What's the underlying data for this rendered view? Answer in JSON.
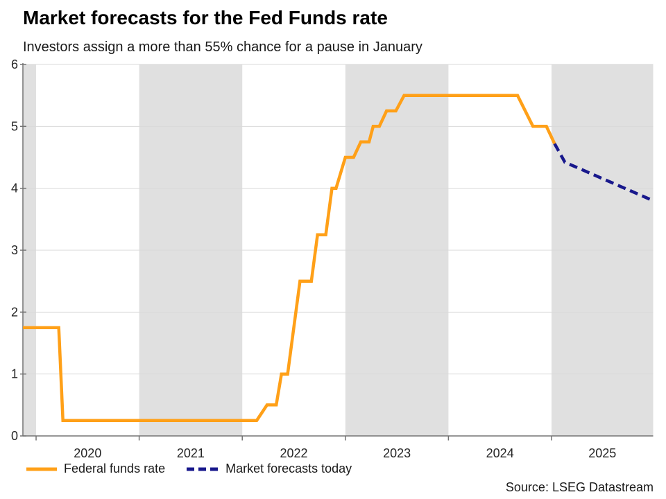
{
  "header": {
    "title": "Market forecasts for the Fed Funds rate",
    "subtitle": "Investors assign a more than 55% chance for a pause in January"
  },
  "legend": {
    "items": [
      {
        "label": "Federal funds rate",
        "color": "#FFA018",
        "style": "solid"
      },
      {
        "label": "Market forecasts today",
        "color": "#18188C",
        "style": "dashed"
      }
    ]
  },
  "source": "Source: LSEG Datastream",
  "chart_data": {
    "type": "line",
    "title": "Market forecasts for the Fed Funds rate",
    "subtitle": "Investors assign a more than 55% chance for a pause in January",
    "xlabel": "",
    "ylabel": "",
    "x_range": [
      2019.872,
      2025.986
    ],
    "y_range": [
      0,
      6
    ],
    "y_ticks": [
      0,
      1,
      2,
      3,
      4,
      5,
      6
    ],
    "x_tick_years": [
      2020,
      2021,
      2022,
      2023,
      2024,
      2025
    ],
    "x_tick_labels": [
      "2020",
      "2021",
      "2022",
      "2023",
      "2024",
      "2025"
    ],
    "grid": "horizontal",
    "legend_position": "bottom-left",
    "shaded_bands": [
      [
        2019.872,
        2020.0
      ],
      [
        2021.0,
        2022.0
      ],
      [
        2023.0,
        2024.0
      ],
      [
        2025.0,
        2025.986
      ]
    ],
    "colors": {
      "orange": "#FFA018",
      "navy": "#18188C",
      "band": "#E0E0E0",
      "grid": "#D9D9D9",
      "axis": "#737373",
      "tick_text": "#262626"
    },
    "series": [
      {
        "name": "Federal funds rate",
        "color": "#FFA018",
        "dash": null,
        "points": [
          [
            2019.872,
            1.75
          ],
          [
            2020.22,
            1.75
          ],
          [
            2020.26,
            0.25
          ],
          [
            2022.14,
            0.25
          ],
          [
            2022.24,
            0.5
          ],
          [
            2022.33,
            0.5
          ],
          [
            2022.38,
            1.0
          ],
          [
            2022.44,
            1.0
          ],
          [
            2022.56,
            2.5
          ],
          [
            2022.67,
            2.5
          ],
          [
            2022.73,
            3.25
          ],
          [
            2022.81,
            3.25
          ],
          [
            2022.87,
            4.0
          ],
          [
            2022.91,
            4.0
          ],
          [
            2023.0,
            4.5
          ],
          [
            2023.08,
            4.5
          ],
          [
            2023.15,
            4.75
          ],
          [
            2023.23,
            4.75
          ],
          [
            2023.27,
            5.0
          ],
          [
            2023.33,
            5.0
          ],
          [
            2023.4,
            5.25
          ],
          [
            2023.49,
            5.25
          ],
          [
            2023.57,
            5.5
          ],
          [
            2024.67,
            5.5
          ],
          [
            2024.82,
            5.0
          ],
          [
            2024.95,
            5.0
          ],
          [
            2025.03,
            4.72
          ]
        ]
      },
      {
        "name": "Market forecasts today",
        "color": "#18188C",
        "dash": [
          12,
          7
        ],
        "points": [
          [
            2025.03,
            4.72
          ],
          [
            2025.13,
            4.42
          ],
          [
            2025.985,
            3.8
          ]
        ]
      }
    ]
  }
}
